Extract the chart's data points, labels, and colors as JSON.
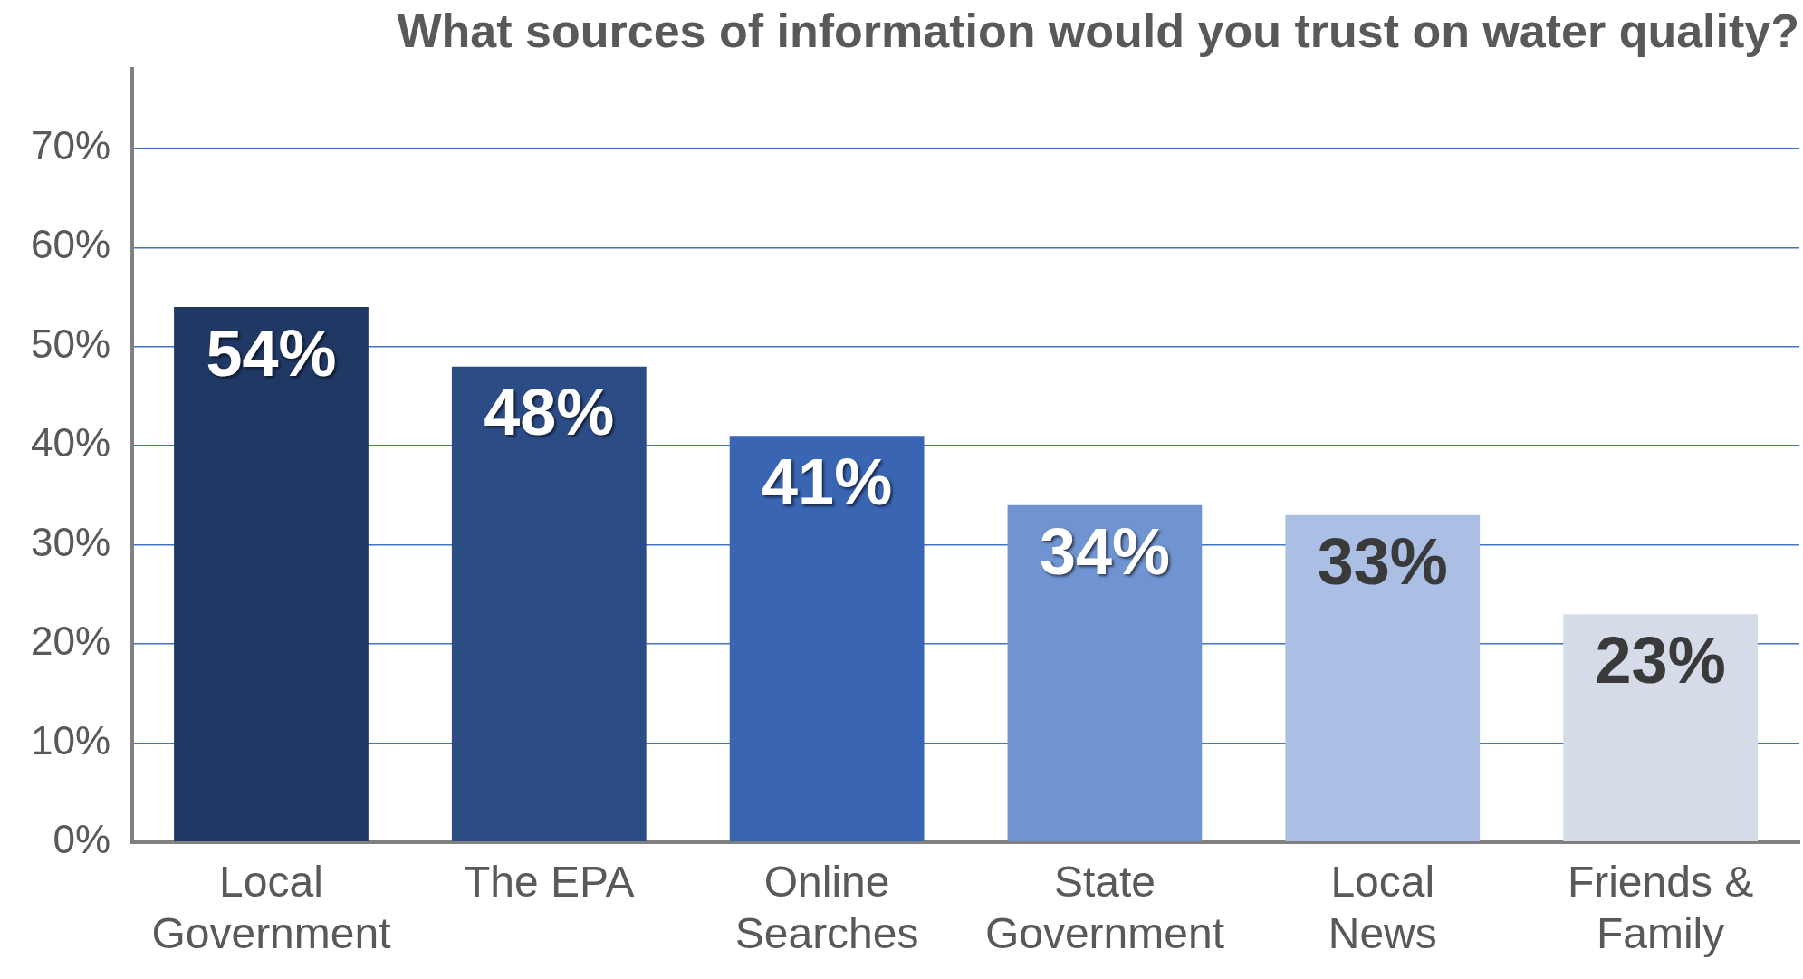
{
  "chart_data": {
    "type": "bar",
    "title": "What sources of information would you trust on water quality?",
    "categories": [
      "Local Government",
      "The EPA",
      "Online Searches",
      "State Government",
      "Local News",
      "Friends & Family"
    ],
    "values": [
      54,
      48,
      41,
      34,
      33,
      23
    ],
    "colors": [
      "#203864",
      "#2c4c86",
      "#3a65b3",
      "#7094d1",
      "#aabfe3",
      "#d5dce7"
    ],
    "value_labels": [
      "54%",
      "48%",
      "41%",
      "34%",
      "33%",
      "23%"
    ],
    "ylim": [
      0,
      78
    ],
    "yticks": [
      {
        "value": 0,
        "label": "0%"
      },
      {
        "value": 10,
        "label": "10%"
      },
      {
        "value": 20,
        "label": "20%"
      },
      {
        "value": 30,
        "label": "30%"
      },
      {
        "value": 40,
        "label": "40%"
      },
      {
        "value": 50,
        "label": "50%"
      },
      {
        "value": 60,
        "label": "60%"
      },
      {
        "value": 70,
        "label": "70%"
      }
    ],
    "grid": "y"
  }
}
